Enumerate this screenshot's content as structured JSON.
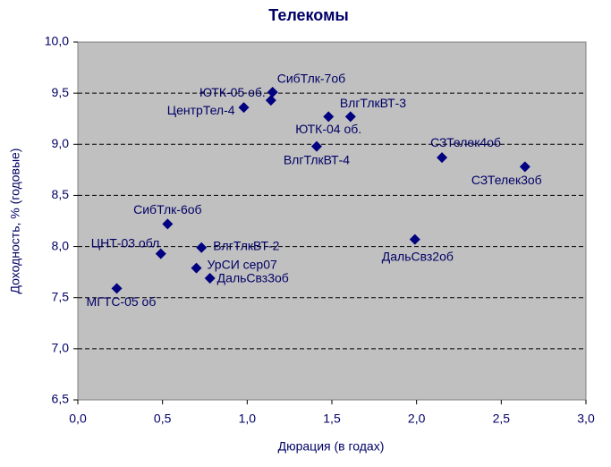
{
  "chart_data": {
    "type": "scatter",
    "title": "Телекомы",
    "x_label": "Дюрация (в годах)",
    "y_label": "Доходность, % (годовые)",
    "color": "#000080",
    "grid": true,
    "xlim": [
      0,
      3
    ],
    "ylim": [
      6.5,
      10
    ],
    "xticks": [
      {
        "value": 0,
        "label": "0,0"
      },
      {
        "value": 0.5,
        "label": "0,5"
      },
      {
        "value": 1,
        "label": "1,0"
      },
      {
        "value": 1.5,
        "label": "1,5"
      },
      {
        "value": 2,
        "label": "2,0"
      },
      {
        "value": 2.5,
        "label": "2,5"
      },
      {
        "value": 3,
        "label": "3,0"
      }
    ],
    "yticks": [
      {
        "value": 6.5,
        "label": "6,5"
      },
      {
        "value": 7,
        "label": "7,0"
      },
      {
        "value": 7.5,
        "label": "7,5"
      },
      {
        "value": 8,
        "label": "8,0"
      },
      {
        "value": 8.5,
        "label": "8,5"
      },
      {
        "value": 9,
        "label": "9,0"
      },
      {
        "value": 9.5,
        "label": "9,5"
      },
      {
        "value": 10,
        "label": "10,0"
      }
    ],
    "labels": [
      "СибТлк-7об",
      "ЮТК-05 об.",
      "ЦентрТел-4",
      "ЮТК-04 об.",
      "ВлгТлкВТ-3",
      "ВлгТлкВТ-4",
      "СЗТелек4об",
      "СЗТелек3об",
      "СибТлк-6об",
      "ЦНТ-03 обл",
      "ВлгТлкВТ-2",
      "УрСИ сер07",
      "ДальСвз3об",
      "ДальСвз2об",
      "МГТС-05 об"
    ],
    "x": [
      1.15,
      1.14,
      0.98,
      1.48,
      1.61,
      1.41,
      2.15,
      2.64,
      0.53,
      0.49,
      0.73,
      0.7,
      0.78,
      1.99,
      0.23
    ],
    "values": [
      9.51,
      9.43,
      9.36,
      9.27,
      9.27,
      8.98,
      8.87,
      8.78,
      8.22,
      7.93,
      7.99,
      7.79,
      7.69,
      8.07,
      7.59
    ]
  }
}
